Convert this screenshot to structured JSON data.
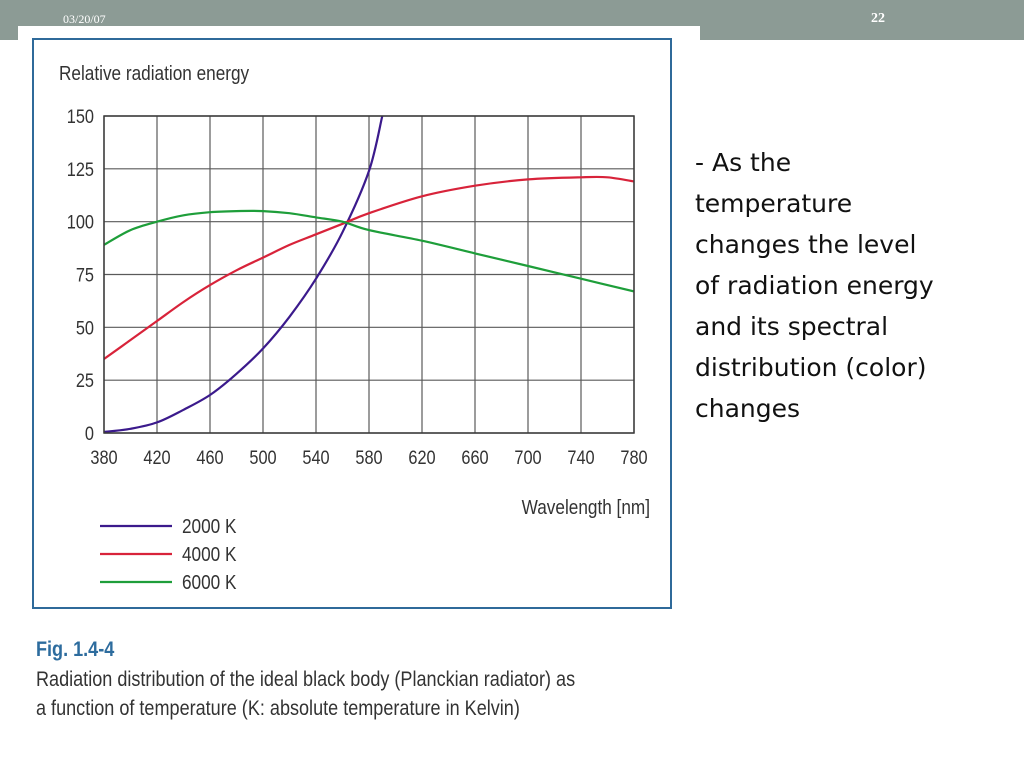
{
  "slide": {
    "date": "03/20/07",
    "page_number": "22"
  },
  "figure": {
    "label": "Fig. 1.4-4",
    "caption_lines": [
      "Radiation distribution of the ideal black body (Planckian radiator) as",
      "a function of temperature (K: absolute temperature in Kelvin)"
    ]
  },
  "side_text_lines": [
    "- As the",
    "temperature",
    "changes the level",
    "of radiation energy",
    "and its spectral",
    "distribution (color)",
    "changes"
  ],
  "chart_data": {
    "type": "line",
    "title": "",
    "ylabel": "Relative radiation energy",
    "xlabel": "Wavelength [nm]",
    "xlim": [
      380,
      780
    ],
    "ylim": [
      0,
      150
    ],
    "xticks": [
      380,
      420,
      460,
      500,
      540,
      580,
      620,
      660,
      700,
      740,
      780
    ],
    "yticks": [
      0,
      25,
      50,
      75,
      100,
      125,
      150
    ],
    "grid": true,
    "legend_position": "bottom-left",
    "series": [
      {
        "name": "2000 K",
        "color": "#3b1a8c",
        "x": [
          380,
          400,
          420,
          440,
          460,
          480,
          500,
          520,
          540,
          560,
          580,
          590
        ],
        "y": [
          0.5,
          2,
          5,
          11,
          18,
          28,
          40,
          55,
          73,
          95,
          124,
          150
        ]
      },
      {
        "name": "4000 K",
        "color": "#d8233a",
        "x": [
          380,
          400,
          420,
          440,
          460,
          480,
          500,
          520,
          540,
          560,
          580,
          620,
          660,
          700,
          740,
          760,
          780
        ],
        "y": [
          35,
          44,
          53,
          62,
          70,
          77,
          83,
          89,
          94,
          99,
          104,
          112,
          117,
          120,
          121,
          121,
          119
        ]
      },
      {
        "name": "6000 K",
        "color": "#1e9e3a",
        "x": [
          380,
          400,
          420,
          440,
          460,
          480,
          500,
          520,
          540,
          560,
          580,
          620,
          660,
          700,
          740,
          780
        ],
        "y": [
          89,
          96,
          100,
          103,
          104.5,
          105,
          105,
          104,
          102,
          100,
          96,
          91,
          85,
          79,
          73,
          67
        ]
      }
    ]
  }
}
